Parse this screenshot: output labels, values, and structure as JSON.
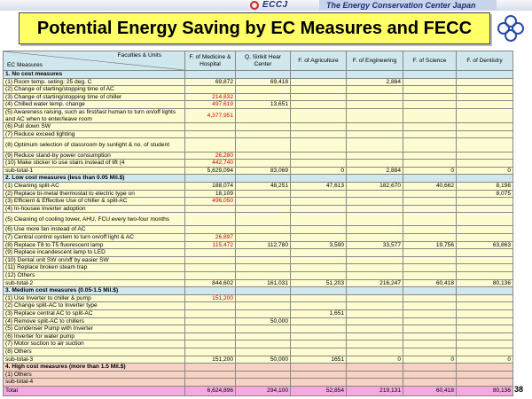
{
  "header": {
    "logo_text": "ECCJ",
    "org_name": "The Energy Conservation Center Japan",
    "title": "Potential Energy Saving by EC Measures and FECC",
    "page_number": "38"
  },
  "colors": {
    "title_bg": "#ffff66",
    "header_bg": "#cfe7ed",
    "row_bg": "#fdfbd0",
    "high_cost_bg": "#f6d2c2",
    "total_bg": "#f6a9e0",
    "red_value": "#cc0000"
  },
  "table": {
    "corner_top": "Faculties & Units",
    "corner_bottom": "EC Measures",
    "columns": [
      "F. of Medicine & Hospital",
      "Q. Sirikit Hear Center",
      "F. of Agriculture",
      "F. of Engineering",
      "F. of Science",
      "F. of Dentistry"
    ],
    "rows": [
      {
        "type": "sec",
        "label": "1. No cost measures",
        "values": [
          "",
          "",
          "",
          "",
          "",
          ""
        ]
      },
      {
        "type": "item",
        "label": "(1) Room temp. seting: 25 deg. C",
        "values": [
          "69,872",
          "69,418",
          "",
          "2,884",
          "",
          ""
        ],
        "red": []
      },
      {
        "type": "item",
        "label": "(2) Change of starting/stopping time of AC",
        "values": [
          "",
          "",
          "",
          "",
          "",
          ""
        ],
        "red": []
      },
      {
        "type": "item",
        "label": "(3) Change of starting/stopping time of chiller",
        "values": [
          "214,632",
          "",
          "",
          "",
          "",
          ""
        ],
        "red": [
          0
        ]
      },
      {
        "type": "item",
        "label": "(4) Chilled water temp. change",
        "values": [
          "497,619",
          "13,651",
          "",
          "",
          "",
          ""
        ],
        "red": [
          0
        ]
      },
      {
        "type": "item tall",
        "label": "(5) Awareness raising, such as first/last human to turn on/off lights and AC when to enter/leave room",
        "values": [
          "4,377,951",
          "",
          "",
          "",
          "",
          ""
        ],
        "red": [
          0
        ]
      },
      {
        "type": "item",
        "label": "(6) Pull down SW",
        "values": [
          "",
          "",
          "",
          "",
          "",
          ""
        ],
        "red": []
      },
      {
        "type": "item",
        "label": "(7) Reduce exceed lighting",
        "values": [
          "",
          "",
          "",
          "",
          "",
          ""
        ],
        "red": []
      },
      {
        "type": "item tall",
        "label": "(8) Optimum selection of classroom by sunlight & no. of student",
        "values": [
          "",
          "",
          "",
          "",
          "",
          ""
        ],
        "red": []
      },
      {
        "type": "item",
        "label": "(9) Reduce stand-by power consumption",
        "values": [
          "26,280",
          "",
          "",
          "",
          "",
          ""
        ],
        "red": [
          0
        ]
      },
      {
        "type": "item",
        "label": "(10) Make sticker to use stairs instead of lift (4",
        "values": [
          "442,740",
          "",
          "",
          "",
          "",
          ""
        ],
        "red": [
          0
        ]
      },
      {
        "type": "sub",
        "label": "sub-total-1",
        "values": [
          "5,629,094",
          "83,069",
          "0",
          "2,884",
          "0",
          "0"
        ],
        "red": []
      },
      {
        "type": "sec",
        "label": "2. Low cost measures (less than 0.05 Mil.$)",
        "values": [
          "",
          "",
          "",
          "",
          "",
          ""
        ]
      },
      {
        "type": "item",
        "label": "(1) Cleaning split-AC",
        "values": [
          "188,074",
          "48,251",
          "47,613",
          "182,670",
          "40,662",
          "8,198"
        ],
        "red": []
      },
      {
        "type": "item",
        "label": "(2) Replace bi-metal thermostat to electric type on",
        "values": [
          "18,109",
          "",
          "",
          "",
          "",
          "8,075"
        ],
        "red": []
      },
      {
        "type": "item",
        "label": "(3) Efficient & Effective Use of chiller & split-AC",
        "values": [
          "496,050",
          "",
          "",
          "",
          "",
          ""
        ],
        "red": [
          0
        ]
      },
      {
        "type": "item",
        "label": "(4) In-housee Inverter adoption",
        "values": [
          "",
          "",
          "",
          "",
          "",
          ""
        ],
        "red": []
      },
      {
        "type": "item tall",
        "label": "(5) Cleaning of cooling tower, AHU, FCU every two-four months",
        "values": [
          "",
          "",
          "",
          "",
          "",
          ""
        ],
        "red": []
      },
      {
        "type": "item",
        "label": "(6) Use more fan instead of AC",
        "values": [
          "",
          "",
          "",
          "",
          "",
          ""
        ],
        "red": []
      },
      {
        "type": "item",
        "label": "(7) Central control system to turn on/off light & AC",
        "values": [
          "26,897",
          "",
          "",
          "",
          "",
          ""
        ],
        "red": [
          0
        ]
      },
      {
        "type": "item",
        "label": "(8) Replace T8 to T5 fluorescent lamp",
        "values": [
          "115,472",
          "112,780",
          "3,590",
          "33,577",
          "19,756",
          "63,863"
        ],
        "red": [
          0
        ]
      },
      {
        "type": "item",
        "label": "(9) Replace incandescent lamp to LED",
        "values": [
          "",
          "",
          "",
          "",
          "",
          ""
        ],
        "red": []
      },
      {
        "type": "item",
        "label": "(10) Dental unit SW on/off by easier SW",
        "values": [
          "",
          "",
          "",
          "",
          "",
          ""
        ],
        "red": []
      },
      {
        "type": "item",
        "label": "(11) Replace broken steam trap",
        "values": [
          "",
          "",
          "",
          "",
          "",
          ""
        ],
        "red": []
      },
      {
        "type": "item",
        "label": "(12) Others",
        "values": [
          "",
          "",
          "",
          "",
          "",
          ""
        ],
        "red": []
      },
      {
        "type": "sub",
        "label": "sub-total-2",
        "values": [
          "844,602",
          "161,031",
          "51,203",
          "216,247",
          "60,418",
          "80,136"
        ],
        "red": []
      },
      {
        "type": "sec",
        "label": "3. Medium cost measures (0.05-1.5 Mil.$)",
        "values": [
          "",
          "",
          "",
          "",
          "",
          ""
        ]
      },
      {
        "type": "item",
        "label": "(1) Use Inverter to chiller & pump",
        "values": [
          "151,200",
          "",
          "",
          "",
          "",
          ""
        ],
        "red": [
          0
        ]
      },
      {
        "type": "item",
        "label": "(2) Change split-AC to Inverter type",
        "values": [
          "",
          "",
          "",
          "",
          "",
          ""
        ],
        "red": []
      },
      {
        "type": "item",
        "label": "(3) Replace central AC to split-AC",
        "values": [
          "",
          "",
          "1,651",
          "",
          "",
          ""
        ],
        "red": []
      },
      {
        "type": "item",
        "label": "(4) Remove split-AC to chillers",
        "values": [
          "",
          "50,000",
          "",
          "",
          "",
          ""
        ],
        "red": []
      },
      {
        "type": "item",
        "label": "(5) Condenser Pump with Inverter",
        "values": [
          "",
          "",
          "",
          "",
          "",
          ""
        ],
        "red": []
      },
      {
        "type": "item",
        "label": "(6) Inverter for water pump",
        "values": [
          "",
          "",
          "",
          "",
          "",
          ""
        ],
        "red": []
      },
      {
        "type": "item",
        "label": "(7) Motor suction to air suction",
        "values": [
          "",
          "",
          "",
          "",
          "",
          ""
        ],
        "red": []
      },
      {
        "type": "item",
        "label": "(8) Others",
        "values": [
          "",
          "",
          "",
          "",
          "",
          ""
        ],
        "red": []
      },
      {
        "type": "sub",
        "label": "sub-total-3",
        "values": [
          "151,200",
          "50,000",
          "1651",
          "0",
          "0",
          "0"
        ],
        "red": []
      },
      {
        "type": "sec4",
        "label": "4. High cost measures (more than 1.5 Mil.$)",
        "values": [
          "",
          "",
          "",
          "",
          "",
          ""
        ]
      },
      {
        "type": "item4",
        "label": "(1) Others",
        "values": [
          "",
          "",
          "",
          "",
          "",
          ""
        ],
        "red": []
      },
      {
        "type": "item4",
        "label": " sub-total-4",
        "values": [
          "",
          "",
          "",
          "",
          "",
          ""
        ],
        "red": []
      },
      {
        "type": "total",
        "label": "Total",
        "values": [
          "6,624,896",
          "294,100",
          "52,854",
          "219,131",
          "60,418",
          "80,136"
        ],
        "red": []
      }
    ]
  }
}
